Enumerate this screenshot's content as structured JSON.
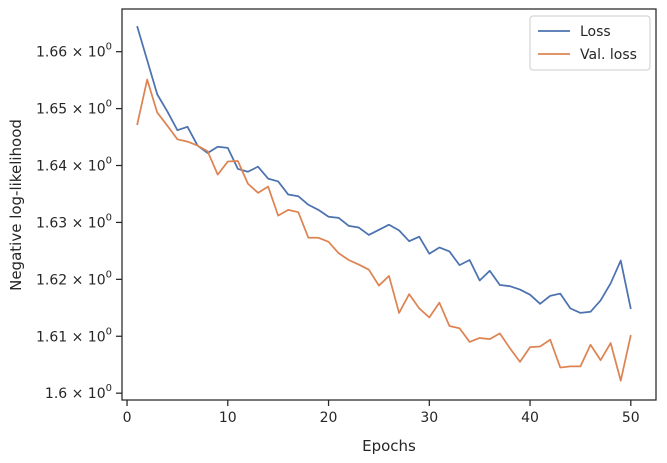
{
  "chart_data": {
    "type": "line",
    "title": "",
    "xlabel": "Epochs",
    "ylabel": "Negative log-likelihood",
    "xlim": [
      -0.5,
      52.5
    ],
    "ylim": [
      1.5988,
      1.6675
    ],
    "x_ticks": [
      {
        "value": 0,
        "label": "0"
      },
      {
        "value": 10,
        "label": "10"
      },
      {
        "value": 20,
        "label": "20"
      },
      {
        "value": 30,
        "label": "30"
      },
      {
        "value": 40,
        "label": "40"
      },
      {
        "value": 50,
        "label": "50"
      }
    ],
    "y_ticks": [
      {
        "value": 1.6,
        "mantissa": "1.6",
        "label": "1.6 × 10",
        "exp": "0"
      },
      {
        "value": 1.61,
        "mantissa": "1.61",
        "label": "1.61 × 10",
        "exp": "0"
      },
      {
        "value": 1.62,
        "mantissa": "1.62",
        "label": "1.62 × 10",
        "exp": "0"
      },
      {
        "value": 1.63,
        "mantissa": "1.63",
        "label": "1.63 × 10",
        "exp": "0"
      },
      {
        "value": 1.64,
        "mantissa": "1.64",
        "label": "1.64 × 10",
        "exp": "0"
      },
      {
        "value": 1.65,
        "mantissa": "1.65",
        "label": "1.65 × 10",
        "exp": "0"
      },
      {
        "value": 1.66,
        "mantissa": "1.66",
        "label": "1.66 × 10",
        "exp": "0"
      }
    ],
    "grid": false,
    "legend_position": "top-right",
    "x": [
      1,
      2,
      3,
      4,
      5,
      6,
      7,
      8,
      9,
      10,
      11,
      12,
      13,
      14,
      15,
      16,
      17,
      18,
      19,
      20,
      21,
      22,
      23,
      24,
      25,
      26,
      27,
      28,
      29,
      30,
      31,
      32,
      33,
      34,
      35,
      36,
      37,
      38,
      39,
      40,
      41,
      42,
      43,
      44,
      45,
      46,
      47,
      48,
      49,
      50
    ],
    "series": [
      {
        "name": "Loss",
        "color": "#4c72b0",
        "values": [
          1.6645,
          1.6585,
          1.6525,
          1.6495,
          1.6462,
          1.6468,
          1.6435,
          1.6422,
          1.6433,
          1.6431,
          1.6394,
          1.6389,
          1.6398,
          1.6377,
          1.6372,
          1.6349,
          1.6346,
          1.6331,
          1.6322,
          1.631,
          1.6308,
          1.6294,
          1.6291,
          1.6278,
          1.6287,
          1.6296,
          1.6286,
          1.6267,
          1.6275,
          1.6245,
          1.6256,
          1.6249,
          1.6225,
          1.6234,
          1.6198,
          1.6215,
          1.619,
          1.6188,
          1.6182,
          1.6173,
          1.6157,
          1.6171,
          1.6175,
          1.6149,
          1.6141,
          1.6143,
          1.6163,
          1.6193,
          1.6233,
          1.6148
        ]
      },
      {
        "name": "Val. loss",
        "color": "#dd8452",
        "values": [
          1.6471,
          1.6551,
          1.6493,
          1.647,
          1.6446,
          1.6442,
          1.6435,
          1.6425,
          1.6384,
          1.6407,
          1.6408,
          1.6368,
          1.6352,
          1.6363,
          1.6312,
          1.6322,
          1.6318,
          1.6273,
          1.6273,
          1.6266,
          1.6246,
          1.6234,
          1.6226,
          1.6217,
          1.6189,
          1.6206,
          1.6141,
          1.6174,
          1.6149,
          1.6133,
          1.6159,
          1.6118,
          1.6114,
          1.609,
          1.6097,
          1.6095,
          1.6105,
          1.6079,
          1.6055,
          1.6081,
          1.6082,
          1.6094,
          1.6045,
          1.6047,
          1.6047,
          1.6085,
          1.6058,
          1.6088,
          1.6022,
          1.6102
        ]
      }
    ]
  }
}
